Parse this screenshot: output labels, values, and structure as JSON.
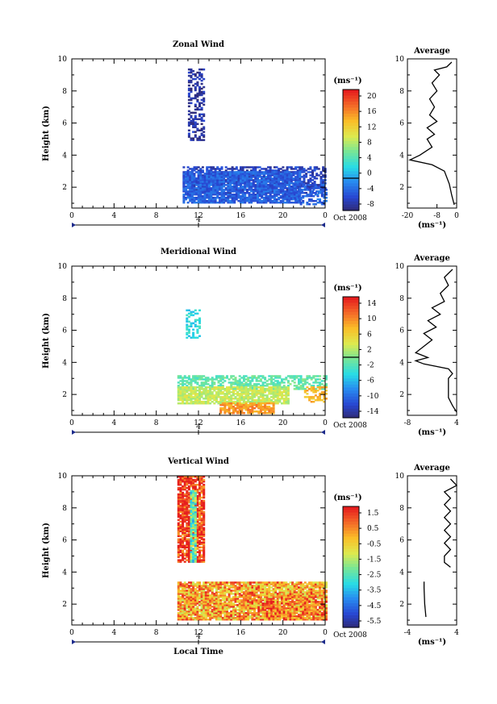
{
  "figure": {
    "xlabel_bottom": "Local Time",
    "date_label": "Oct 2008",
    "day_label": "4",
    "ylabel": "Height (km)",
    "unit_label": "(ms⁻¹)",
    "avg_title": "Average",
    "avg_xlabel": "(ms⁻¹)"
  },
  "chart_data": [
    {
      "type": "heatmap",
      "title": "Zonal Wind",
      "xlabel": "",
      "ylabel": "Height (km)",
      "xlim": [
        0,
        24
      ],
      "ylim": [
        0.7,
        10
      ],
      "x_ticks": [
        "0",
        "4",
        "8",
        "12",
        "16",
        "20",
        "0"
      ],
      "y_ticks": [
        "2",
        "4",
        "6",
        "8",
        "10"
      ],
      "colorbar": {
        "unit": "(ms⁻¹)",
        "range": [
          -8,
          22
        ],
        "ticks": [
          "20",
          "16",
          "12",
          "8",
          "4",
          "0",
          "-4",
          "-8"
        ],
        "zero_line": 0
      },
      "blocks": [
        {
          "x": [
            11,
            12.5
          ],
          "y": [
            4.9,
            9.3
          ],
          "v": -6,
          "density": 0.45
        },
        {
          "x": [
            10.5,
            24
          ],
          "y": [
            1.6,
            3.3
          ],
          "v": -5,
          "density": 0.6
        },
        {
          "x": [
            10.5,
            21.5
          ],
          "y": [
            1.0,
            3.0
          ],
          "v": -3,
          "density": 0.85
        },
        {
          "x": [
            21,
            24
          ],
          "y": [
            0.9,
            2.2
          ],
          "v": -3,
          "density": 0.5
        }
      ],
      "average": {
        "xlim": [
          -20,
          0
        ],
        "x_ticks": [
          "-20",
          "-8",
          "0"
        ],
        "ylim": [
          0.7,
          10
        ],
        "profile": [
          [
            -1,
            0.9
          ],
          [
            -2,
            1.5
          ],
          [
            -3,
            2.2
          ],
          [
            -5,
            3.0
          ],
          [
            -10,
            3.4
          ],
          [
            -19,
            3.7
          ],
          [
            -15,
            4.0
          ],
          [
            -10,
            4.5
          ],
          [
            -12,
            5.0
          ],
          [
            -9,
            5.3
          ],
          [
            -12,
            5.7
          ],
          [
            -8,
            6.1
          ],
          [
            -11,
            6.5
          ],
          [
            -9,
            7.0
          ],
          [
            -11,
            7.5
          ],
          [
            -8,
            8.0
          ],
          [
            -10,
            8.5
          ],
          [
            -7,
            9.0
          ],
          [
            -9,
            9.3
          ],
          [
            -4,
            9.5
          ],
          [
            -2,
            9.8
          ]
        ]
      }
    },
    {
      "type": "heatmap",
      "title": "Meridional Wind",
      "xlabel": "",
      "ylabel": "Height (km)",
      "xlim": [
        0,
        24
      ],
      "ylim": [
        0.7,
        10
      ],
      "x_ticks": [
        "0",
        "4",
        "8",
        "12",
        "16",
        "20",
        "0"
      ],
      "y_ticks": [
        "2",
        "4",
        "6",
        "8",
        "10"
      ],
      "colorbar": {
        "unit": "(ms⁻¹)",
        "range": [
          -16,
          16
        ],
        "ticks": [
          "14",
          "10",
          "6",
          "2",
          "-2",
          "-6",
          "-10",
          "-14"
        ],
        "zero_line": 0
      },
      "blocks": [
        {
          "x": [
            10.8,
            12
          ],
          "y": [
            5.5,
            7.2
          ],
          "v": -4,
          "density": 0.4
        },
        {
          "x": [
            10,
            24
          ],
          "y": [
            2.3,
            3.2
          ],
          "v": -1,
          "density": 0.6
        },
        {
          "x": [
            10,
            20.5
          ],
          "y": [
            1.4,
            2.5
          ],
          "v": 3,
          "density": 0.85
        },
        {
          "x": [
            14,
            19
          ],
          "y": [
            0.8,
            1.5
          ],
          "v": 10,
          "density": 0.8
        },
        {
          "x": [
            22,
            24
          ],
          "y": [
            1.5,
            2.5
          ],
          "v": 8,
          "density": 0.5
        }
      ],
      "average": {
        "xlim": [
          -8,
          4
        ],
        "x_ticks": [
          "-8",
          "4"
        ],
        "ylim": [
          0.7,
          10
        ],
        "profile": [
          [
            4,
            0.9
          ],
          [
            3,
            1.3
          ],
          [
            2,
            1.8
          ],
          [
            2,
            2.4
          ],
          [
            2,
            3.0
          ],
          [
            3,
            3.3
          ],
          [
            2,
            3.6
          ],
          [
            -4,
            3.9
          ],
          [
            -6,
            4.1
          ],
          [
            -3,
            4.3
          ],
          [
            -6,
            4.6
          ],
          [
            -4,
            5.0
          ],
          [
            -2,
            5.4
          ],
          [
            -4,
            5.8
          ],
          [
            -1,
            6.2
          ],
          [
            -3,
            6.6
          ],
          [
            0,
            7.0
          ],
          [
            -2,
            7.4
          ],
          [
            1,
            7.8
          ],
          [
            0,
            8.3
          ],
          [
            2,
            8.8
          ],
          [
            1,
            9.3
          ],
          [
            3,
            9.8
          ]
        ]
      }
    },
    {
      "type": "heatmap",
      "title": "Vertical Wind",
      "xlabel": "Local Time",
      "ylabel": "Height (km)",
      "xlim": [
        0,
        24
      ],
      "ylim": [
        0.7,
        10
      ],
      "x_ticks": [
        "0",
        "4",
        "8",
        "12",
        "16",
        "20",
        "0"
      ],
      "y_ticks": [
        "2",
        "4",
        "6",
        "8",
        "10"
      ],
      "colorbar": {
        "unit": "(ms⁻¹)",
        "range": [
          -7,
          2.5
        ],
        "ticks": [
          "1.5",
          "0.5",
          "-0.5",
          "-1.5",
          "-2.5",
          "-3.5",
          "-4.5",
          "-5.5"
        ],
        "zero_line": null
      },
      "blocks": [
        {
          "x": [
            10,
            12.5
          ],
          "y": [
            4.6,
            9.9
          ],
          "v": 2.3,
          "density": 0.85
        },
        {
          "x": [
            11.2,
            11.6
          ],
          "y": [
            4.6,
            9.0
          ],
          "v": -2.5,
          "density": 0.9
        },
        {
          "x": [
            10,
            24
          ],
          "y": [
            1.0,
            3.4
          ],
          "v": 0.5,
          "density": 0.9
        },
        {
          "x": [
            18,
            24
          ],
          "y": [
            1.0,
            2.2
          ],
          "v": 1.2,
          "density": 0.7
        }
      ],
      "average": {
        "xlim": [
          -4,
          4
        ],
        "x_ticks": [
          "-4",
          "4"
        ],
        "ylim": [
          0.7,
          10
        ],
        "profile": [
          [
            3,
            4.3
          ],
          [
            2,
            4.6
          ],
          [
            2,
            5.0
          ],
          [
            3,
            5.4
          ],
          [
            2,
            5.8
          ],
          [
            3,
            6.2
          ],
          [
            2,
            6.6
          ],
          [
            3,
            7.0
          ],
          [
            2,
            7.4
          ],
          [
            3,
            7.8
          ],
          [
            2,
            8.2
          ],
          [
            3,
            8.6
          ],
          [
            2,
            9.0
          ],
          [
            4,
            9.4
          ],
          [
            3,
            9.8
          ]
        ],
        "profile2": [
          [
            -1,
            1.2
          ],
          [
            -1.2,
            2.0
          ],
          [
            -1.3,
            3.0
          ],
          [
            -1.3,
            3.4
          ]
        ]
      }
    }
  ]
}
